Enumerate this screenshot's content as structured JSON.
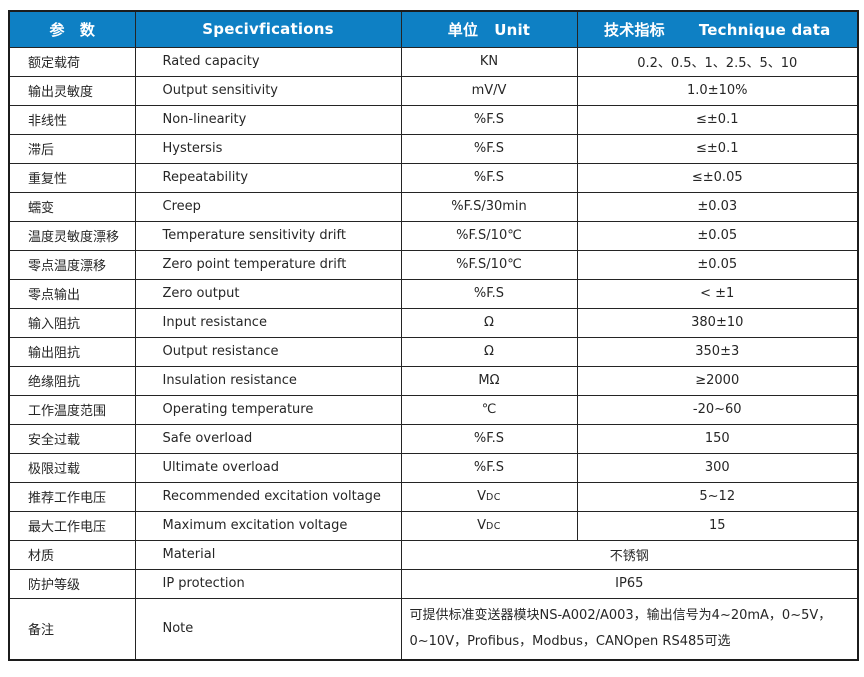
{
  "table": {
    "accent_color": "#0e80c4",
    "border_color": "#1c1c1c",
    "header": {
      "param": "参　数",
      "spec": "Specivfications",
      "unit_cn": "单位",
      "unit_en": "Unit",
      "data_cn": "技术指标",
      "data_en": "Technique data"
    },
    "rows": [
      {
        "cn": "额定载荷",
        "en": "Rated capacity",
        "unit": "KN",
        "value": "0.2、0.5、1、2.5、5、10"
      },
      {
        "cn": "输出灵敏度",
        "en": "Output sensitivity",
        "unit": "mV/V",
        "value": "1.0±10%"
      },
      {
        "cn": "非线性",
        "en": "Non-linearity",
        "unit": "%F.S",
        "value": "≤±0.1"
      },
      {
        "cn": "滞后",
        "en": "Hystersis",
        "unit": "%F.S",
        "value": "≤±0.1"
      },
      {
        "cn": "重复性",
        "en": "Repeatability",
        "unit": "%F.S",
        "value": "≤±0.05"
      },
      {
        "cn": "蠕变",
        "en": "Creep",
        "unit": "%F.S/30min",
        "value": "±0.03"
      },
      {
        "cn": "温度灵敏度漂移",
        "en": "Temperature sensitivity drift",
        "unit": "%F.S/10℃",
        "value": "±0.05"
      },
      {
        "cn": "零点温度漂移",
        "en": "Zero point temperature drift",
        "unit": "%F.S/10℃",
        "value": "±0.05"
      },
      {
        "cn": "零点输出",
        "en": "Zero output",
        "unit": "%F.S",
        "value": "< ±1"
      },
      {
        "cn": "输入阻抗",
        "en": "Input resistance",
        "unit": "Ω",
        "value": "380±10"
      },
      {
        "cn": "输出阻抗",
        "en": "Output resistance",
        "unit": "Ω",
        "value": "350±3"
      },
      {
        "cn": "绝缘阻抗",
        "en": "Insulation resistance",
        "unit": "MΩ",
        "value": "≥2000"
      },
      {
        "cn": "工作温度范围",
        "en": "Operating temperature",
        "unit": "℃",
        "value": "-20~60"
      },
      {
        "cn": "安全过载",
        "en": "Safe overload",
        "unit": "%F.S",
        "value": "150"
      },
      {
        "cn": "极限过载",
        "en": "Ultimate overload",
        "unit": "%F.S",
        "value": "300"
      },
      {
        "cn": "推荐工作电压",
        "en": "Recommended excitation voltage",
        "unit": "VDC",
        "value": "5~12"
      },
      {
        "cn": "最大工作电压",
        "en": "Maximum excitation voltage",
        "unit": "VDC",
        "value": "15"
      },
      {
        "cn": "材质",
        "en": "Material",
        "merged": true,
        "value": "不锈钢"
      },
      {
        "cn": "防护等级",
        "en": "IP protection",
        "merged": true,
        "value": "IP65"
      },
      {
        "cn": "备注",
        "en": "Note",
        "merged": true,
        "align": "left",
        "tall": true,
        "value": "可提供标准变送器模块NS-A002/A003，输出信号为4~20mA，0~5V，0~10V，Profibus，Modbus，CANOpen RS485可选"
      }
    ]
  }
}
